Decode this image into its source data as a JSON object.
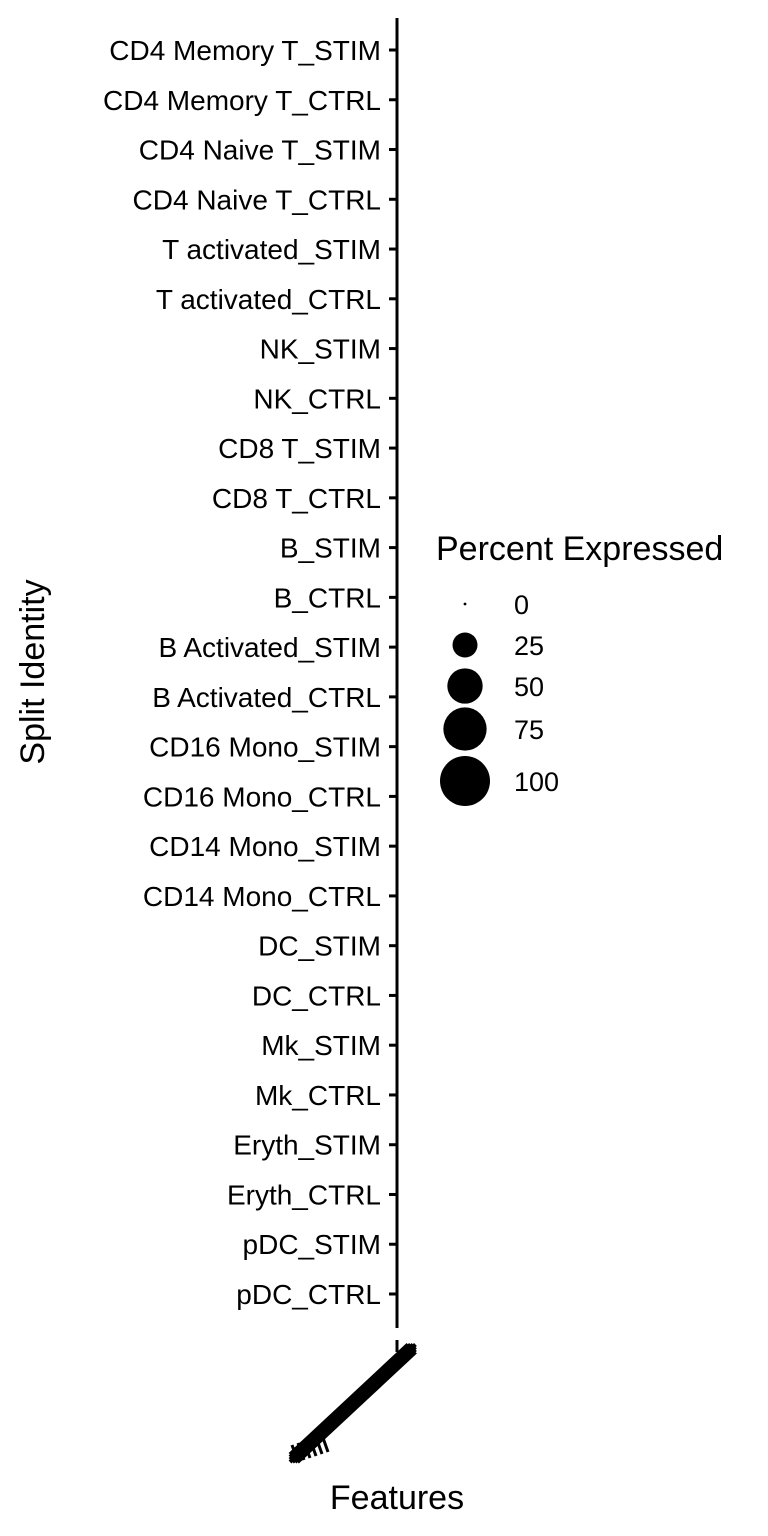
{
  "chart_data": {
    "type": "dot",
    "title": "",
    "xlabel": "Features",
    "ylabel": "Split Identity",
    "categories_y": [
      "CD4 Memory T_STIM",
      "CD4 Memory T_CTRL",
      "CD4 Naive T_STIM",
      "CD4 Naive T_CTRL",
      "T activated_STIM",
      "T activated_CTRL",
      "NK_STIM",
      "NK_CTRL",
      "CD8 T_STIM",
      "CD8 T_CTRL",
      "B_STIM",
      "B_CTRL",
      "B Activated_STIM",
      "B Activated_CTRL",
      "CD16 Mono_STIM",
      "CD16 Mono_CTRL",
      "CD14 Mono_STIM",
      "CD14 Mono_CTRL",
      "DC_STIM",
      "DC_CTRL",
      "Mk_STIM",
      "Mk_CTRL",
      "Eryth_STIM",
      "Eryth_CTRL",
      "pDC_STIM",
      "pDC_CTRL"
    ],
    "features": [],
    "points": [],
    "legend": {
      "title": "Percent Expressed",
      "placement": "right",
      "sizes": [
        {
          "label": "0",
          "value": 0
        },
        {
          "label": "25",
          "value": 25
        },
        {
          "label": "50",
          "value": 50
        },
        {
          "label": "75",
          "value": 75
        },
        {
          "label": "100",
          "value": 100
        }
      ]
    },
    "grid": false,
    "colors": {
      "axis": "#000000",
      "dot": "#000000"
    }
  }
}
